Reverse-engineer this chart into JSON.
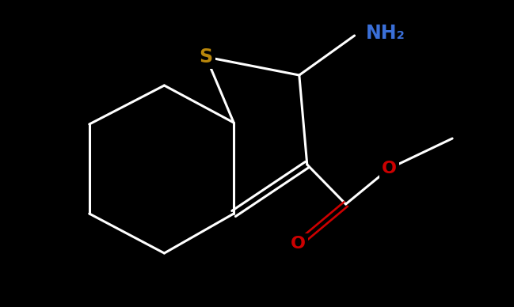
{
  "background_color": "#000000",
  "bond_color": "#ffffff",
  "bond_width": 2.2,
  "S_color": "#b8860b",
  "N_color": "#3a6fd8",
  "O_color": "#cc0000",
  "font_size_S": 17,
  "font_size_NH2": 17,
  "font_size_O": 16,
  "figsize": [
    6.49,
    3.88
  ],
  "dpi": 100,
  "xlim": [
    0,
    10
  ],
  "ylim": [
    0,
    6
  ]
}
